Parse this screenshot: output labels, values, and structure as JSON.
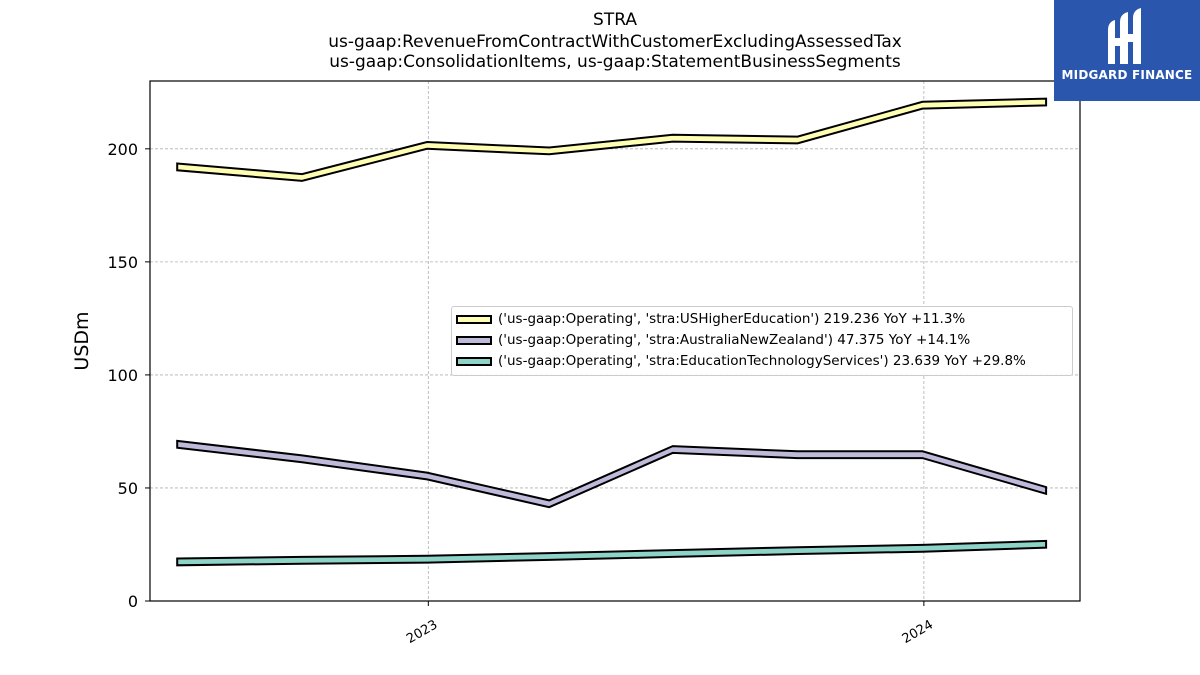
{
  "title_lines": [
    "STRA",
    "us-gaap:RevenueFromContractWithCustomerExcludingAssessedTax",
    "us-gaap:ConsolidationItems, us-gaap:StatementBusinessSegments"
  ],
  "logo": {
    "text": "MIDGARD FINANCE",
    "background": "#2a56ae"
  },
  "chart_data": {
    "type": "area",
    "title": "STRA",
    "ylabel": "USDm",
    "xlabel": "",
    "ylim": [
      0,
      230
    ],
    "xlim": [
      "2022-06-10",
      "2024-04-25"
    ],
    "yticks": [
      0,
      50,
      100,
      150,
      200
    ],
    "xticks": [
      {
        "label": "2023",
        "date": "2023-01-01"
      },
      {
        "label": "2024",
        "date": "2024-01-01"
      }
    ],
    "grid": true,
    "legend_position": "center-right",
    "x": [
      "2022-06-30",
      "2022-09-30",
      "2022-12-31",
      "2023-03-31",
      "2023-06-30",
      "2023-09-30",
      "2023-12-31",
      "2024-03-31"
    ],
    "band_thickness": 3,
    "series": [
      {
        "name": "('us-gaap:Operating', 'stra:USHigherEducation') 219.236 YoY +11.3%",
        "color": "#ffffb3",
        "values": [
          190.5,
          185.8,
          200.0,
          197.6,
          203.2,
          202.4,
          217.8,
          219.2
        ]
      },
      {
        "name": "('us-gaap:Operating', 'stra:AustraliaNewZealand') 47.375 YoY +14.1%",
        "color": "#bebada",
        "values": [
          67.8,
          61.4,
          53.8,
          41.5,
          65.5,
          63.2,
          63.2,
          47.4
        ]
      },
      {
        "name": "('us-gaap:Operating', 'stra:EducationTechnologyServices') 23.639 YoY +29.8%",
        "color": "#8dd3c7",
        "values": [
          15.8,
          16.5,
          17.0,
          18.2,
          19.5,
          20.8,
          21.8,
          23.6
        ]
      }
    ]
  }
}
